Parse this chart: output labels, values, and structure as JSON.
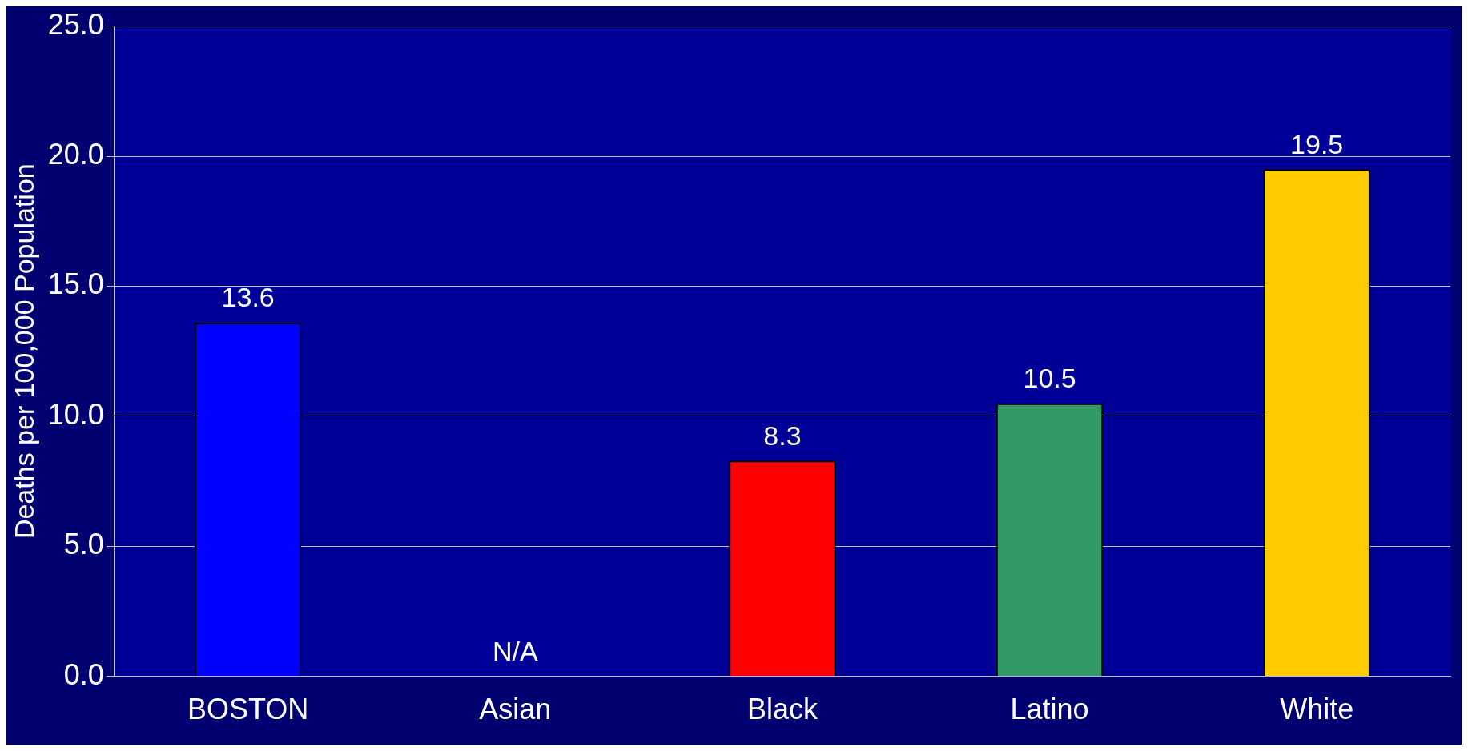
{
  "chart_data": {
    "type": "bar",
    "ylabel": "Deaths per 100,000 Population",
    "categories": [
      "BOSTON",
      "Asian",
      "Black",
      "Latino",
      "White"
    ],
    "values": [
      13.6,
      null,
      8.3,
      10.5,
      19.5
    ],
    "colors": [
      "#0000ff",
      null,
      "#ff0000",
      "#339966",
      "#ffcc00"
    ],
    "value_labels": [
      "13.6",
      "N/A",
      "8.3",
      "10.5",
      "19.5"
    ],
    "ylim": [
      0,
      25
    ],
    "yticks": [
      {
        "value": 0,
        "label": "0.0"
      },
      {
        "value": 5,
        "label": "5.0"
      },
      {
        "value": 10,
        "label": "10.0"
      },
      {
        "value": 15,
        "label": "15.0"
      },
      {
        "value": 20,
        "label": "20.0"
      },
      {
        "value": 25,
        "label": "25.0"
      }
    ],
    "grid": "y",
    "legend": false
  }
}
